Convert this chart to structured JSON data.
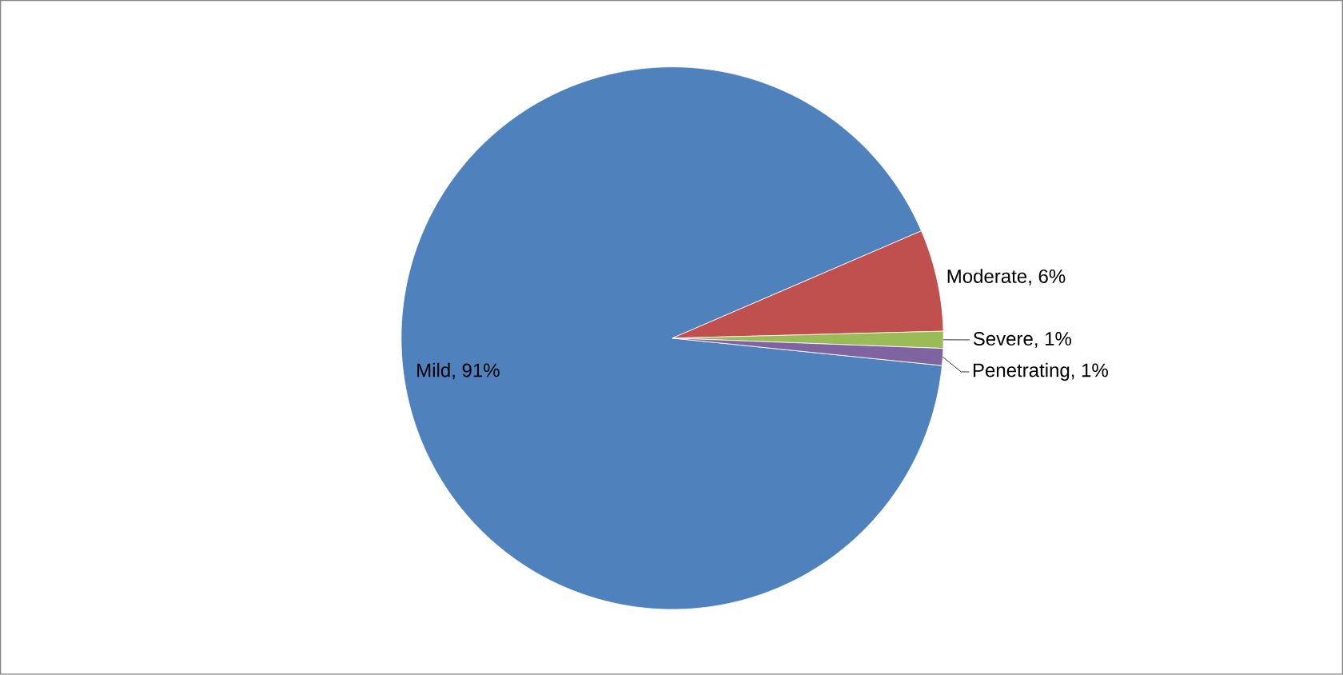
{
  "chart_data": {
    "type": "pie",
    "categories": [
      "Mild",
      "Moderate",
      "Severe",
      "Penetrating"
    ],
    "values": [
      91,
      6,
      1,
      1
    ],
    "value_labels": [
      ", 91%",
      ", 6%",
      ", 1%",
      ", 1%"
    ],
    "colors": [
      "#4f81bd",
      "#c0504d",
      "#9bbb59",
      "#8064a2"
    ],
    "legend": false
  }
}
